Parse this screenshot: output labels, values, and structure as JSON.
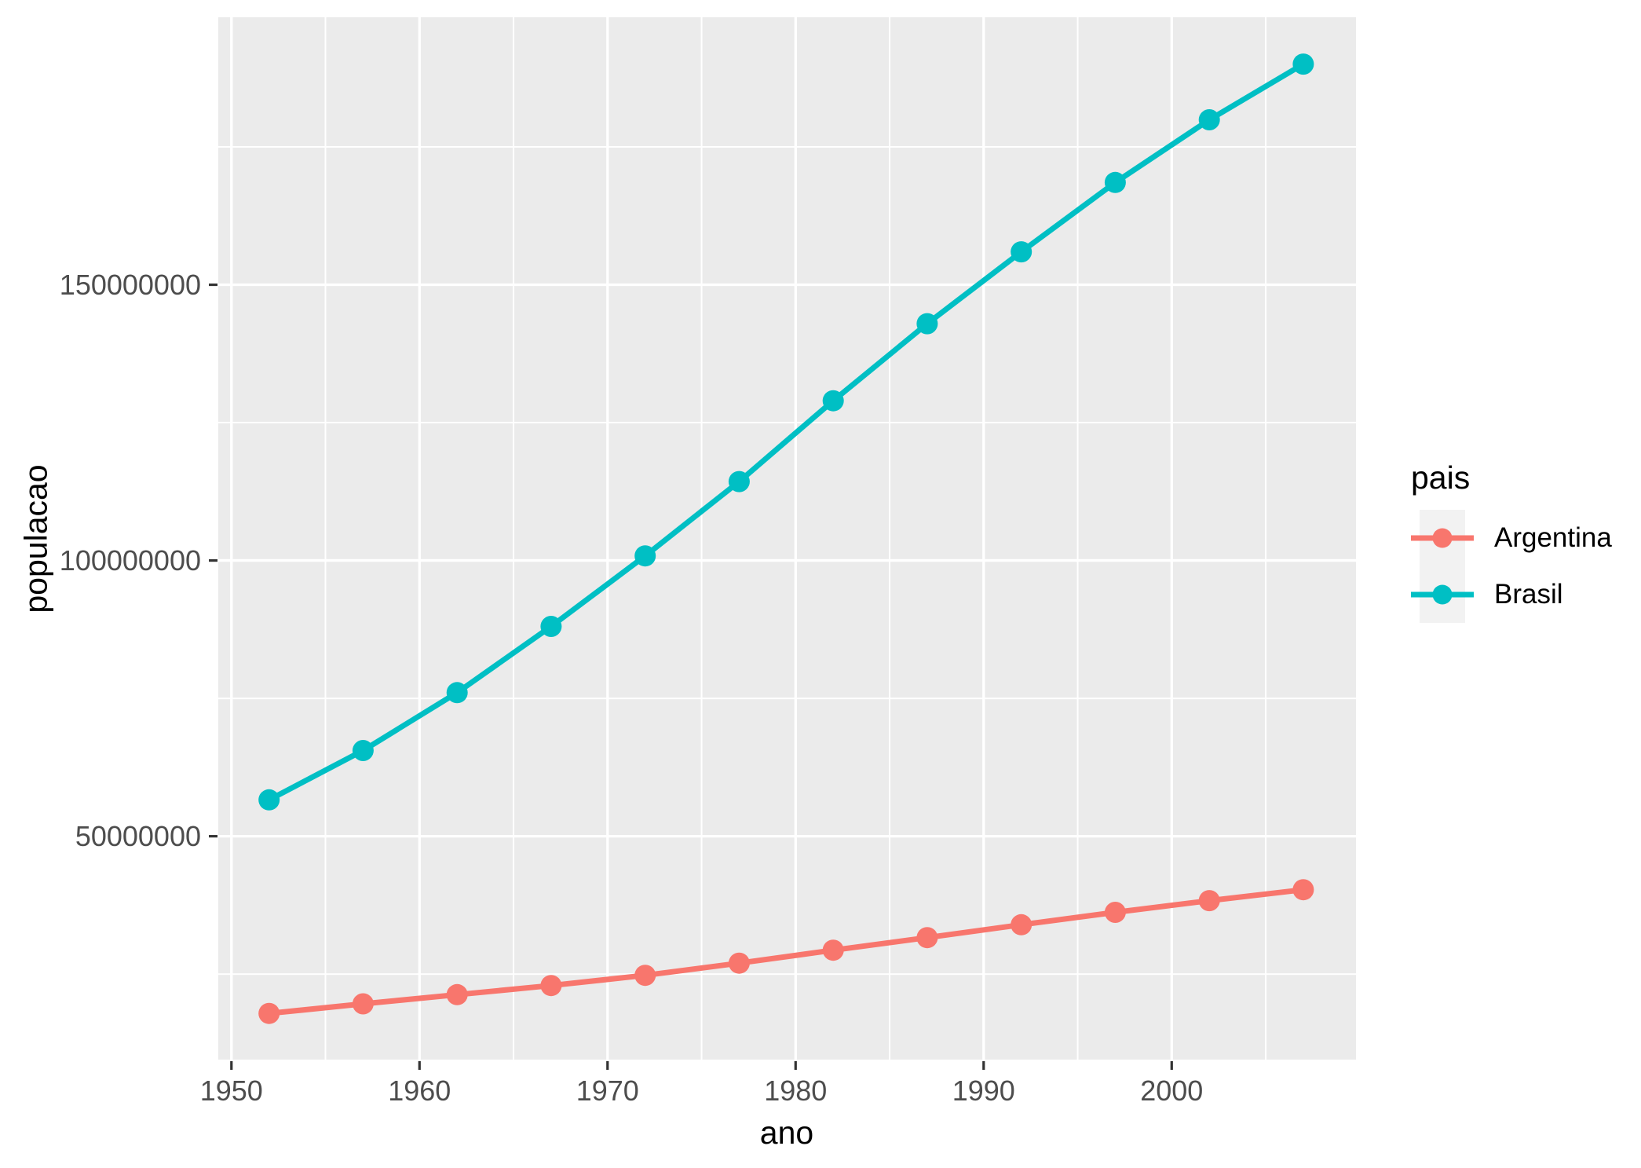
{
  "chart_data": {
    "type": "line",
    "title": "",
    "xlabel": "ano",
    "ylabel": "populacao",
    "legend": {
      "title": "pais",
      "position": "right",
      "entries": [
        "Argentina",
        "Brasil"
      ]
    },
    "x": [
      1952,
      1957,
      1962,
      1967,
      1972,
      1977,
      1982,
      1987,
      1992,
      1997,
      2002,
      2007
    ],
    "series": [
      {
        "name": "Argentina",
        "color": "#F8766D",
        "values": [
          17876956,
          19610538,
          21283783,
          22934225,
          24779799,
          26983828,
          29341374,
          31620918,
          33958947,
          36203463,
          38331121,
          40301927
        ]
      },
      {
        "name": "Brasil",
        "color": "#00BFC4",
        "values": [
          56602560,
          65551171,
          76039390,
          88049823,
          100840058,
          114313951,
          128962939,
          142938076,
          155975974,
          168546719,
          179914212,
          190010647
        ]
      }
    ],
    "x_ticks": {
      "values": [
        1950,
        1960,
        1970,
        1980,
        1990,
        2000
      ],
      "labels": [
        "1950",
        "1960",
        "1970",
        "1980",
        "1990",
        "2000"
      ]
    },
    "y_ticks": {
      "values": [
        50000000,
        100000000,
        150000000
      ],
      "labels": [
        "50000000",
        "100000000",
        "150000000"
      ]
    },
    "x_minor_ticks": [
      1955,
      1965,
      1975,
      1985,
      1995,
      2005
    ],
    "y_minor_ticks": [
      25000000,
      75000000,
      125000000,
      175000000
    ],
    "xlim": [
      1949.3,
      2009.8
    ],
    "ylim": [
      9500000,
      198500000
    ],
    "grid": "on",
    "style": {
      "panel_background": "#EBEBEB",
      "grid_color": "#FFFFFF",
      "legend_key_background": "#F2F2F2",
      "tick_mark_color": "#333333",
      "axis_text_color": "#4D4D4D",
      "title_text_color": "#000000",
      "figure_background": "#FFFFFF"
    }
  }
}
